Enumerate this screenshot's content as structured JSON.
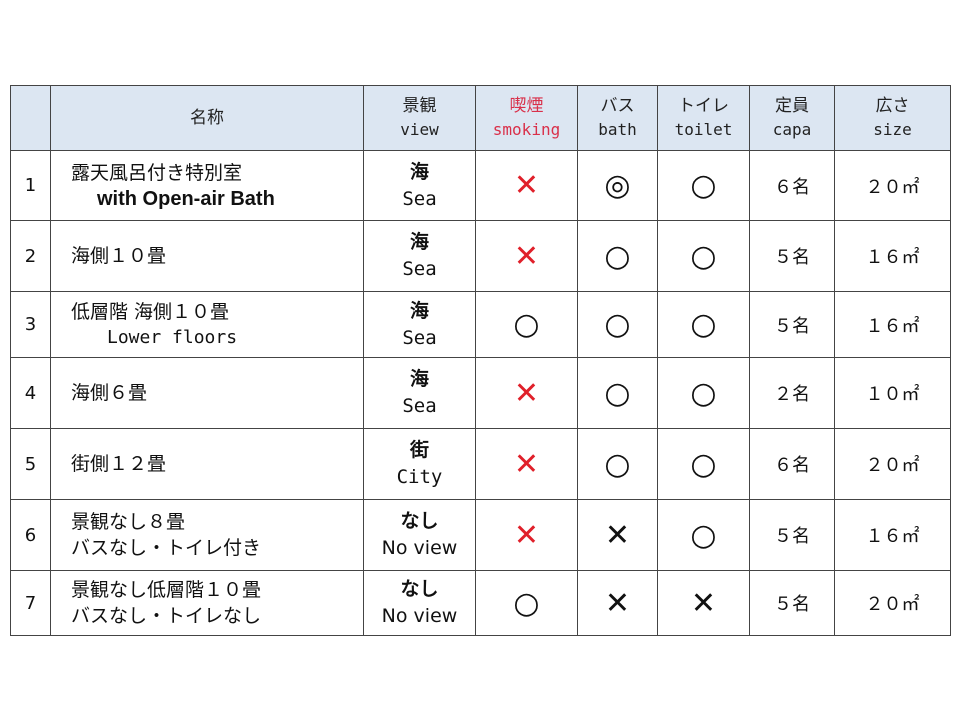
{
  "header": {
    "name": "名称",
    "view_ja": "景観",
    "view_en": "view",
    "smoking_ja": "喫煙",
    "smoking_en": "smoking",
    "bath_ja": "バス",
    "bath_en": "bath",
    "toilet_ja": "トイレ",
    "toilet_en": "toilet",
    "capa_ja": "定員",
    "capa_en": "capa",
    "size_ja": "広さ",
    "size_en": "size"
  },
  "colors": {
    "header_bg": "#dce6f2",
    "smoking_header": "#d9304a",
    "no_smoking_mark": "#e0202a"
  },
  "rows": [
    {
      "no": "1",
      "name1": "露天風呂付き特別室",
      "name2": "with Open-air Bath",
      "name2_style": "bold",
      "view_ja": "海",
      "view_en": "Sea",
      "smoking": "✕",
      "smoking_red": true,
      "bath": "◎",
      "bath_x": false,
      "toilet": "○",
      "toilet_x": false,
      "capa": "６名",
      "size": "２０㎡"
    },
    {
      "no": "2",
      "name1": "海側１０畳",
      "name2": "",
      "view_ja": "海",
      "view_en": "Sea",
      "smoking": "✕",
      "smoking_red": true,
      "bath": "○",
      "bath_x": false,
      "toilet": "○",
      "toilet_x": false,
      "capa": "５名",
      "size": "１６㎡"
    },
    {
      "no": "3",
      "name1": "低層階 海側１０畳",
      "name2": "Lower floors",
      "name2_style": "mono",
      "view_ja": "海",
      "view_en": "Sea",
      "smoking": "○",
      "smoking_red": false,
      "bath": "○",
      "bath_x": false,
      "toilet": "○",
      "toilet_x": false,
      "capa": "５名",
      "size": "１６㎡"
    },
    {
      "no": "4",
      "name1": "海側６畳",
      "name2": "",
      "view_ja": "海",
      "view_en": "Sea",
      "smoking": "✕",
      "smoking_red": true,
      "bath": "○",
      "bath_x": false,
      "toilet": "○",
      "toilet_x": false,
      "capa": "２名",
      "size": "１０㎡"
    },
    {
      "no": "5",
      "name1": "街側１２畳",
      "name2": "",
      "view_ja": "街",
      "view_en": "City",
      "smoking": "✕",
      "smoking_red": true,
      "bath": "○",
      "bath_x": false,
      "toilet": "○",
      "toilet_x": false,
      "capa": "６名",
      "size": "２０㎡"
    },
    {
      "no": "6",
      "name1": "景観なし８畳",
      "name2": "バスなし・トイレ付き",
      "name2_style": "plain",
      "view_ja": "なし",
      "view_en": "No view",
      "smoking": "✕",
      "smoking_red": true,
      "bath": "✕",
      "bath_x": true,
      "toilet": "○",
      "toilet_x": false,
      "capa": "５名",
      "size": "１６㎡"
    },
    {
      "no": "7",
      "name1": "景観なし低層階１０畳",
      "name2": "バスなし・トイレなし",
      "name2_style": "plain",
      "view_ja": "なし",
      "view_en": "No view",
      "smoking": "○",
      "smoking_red": false,
      "bath": "✕",
      "bath_x": true,
      "toilet": "✕",
      "toilet_x": true,
      "capa": "５名",
      "size": "２０㎡"
    }
  ]
}
